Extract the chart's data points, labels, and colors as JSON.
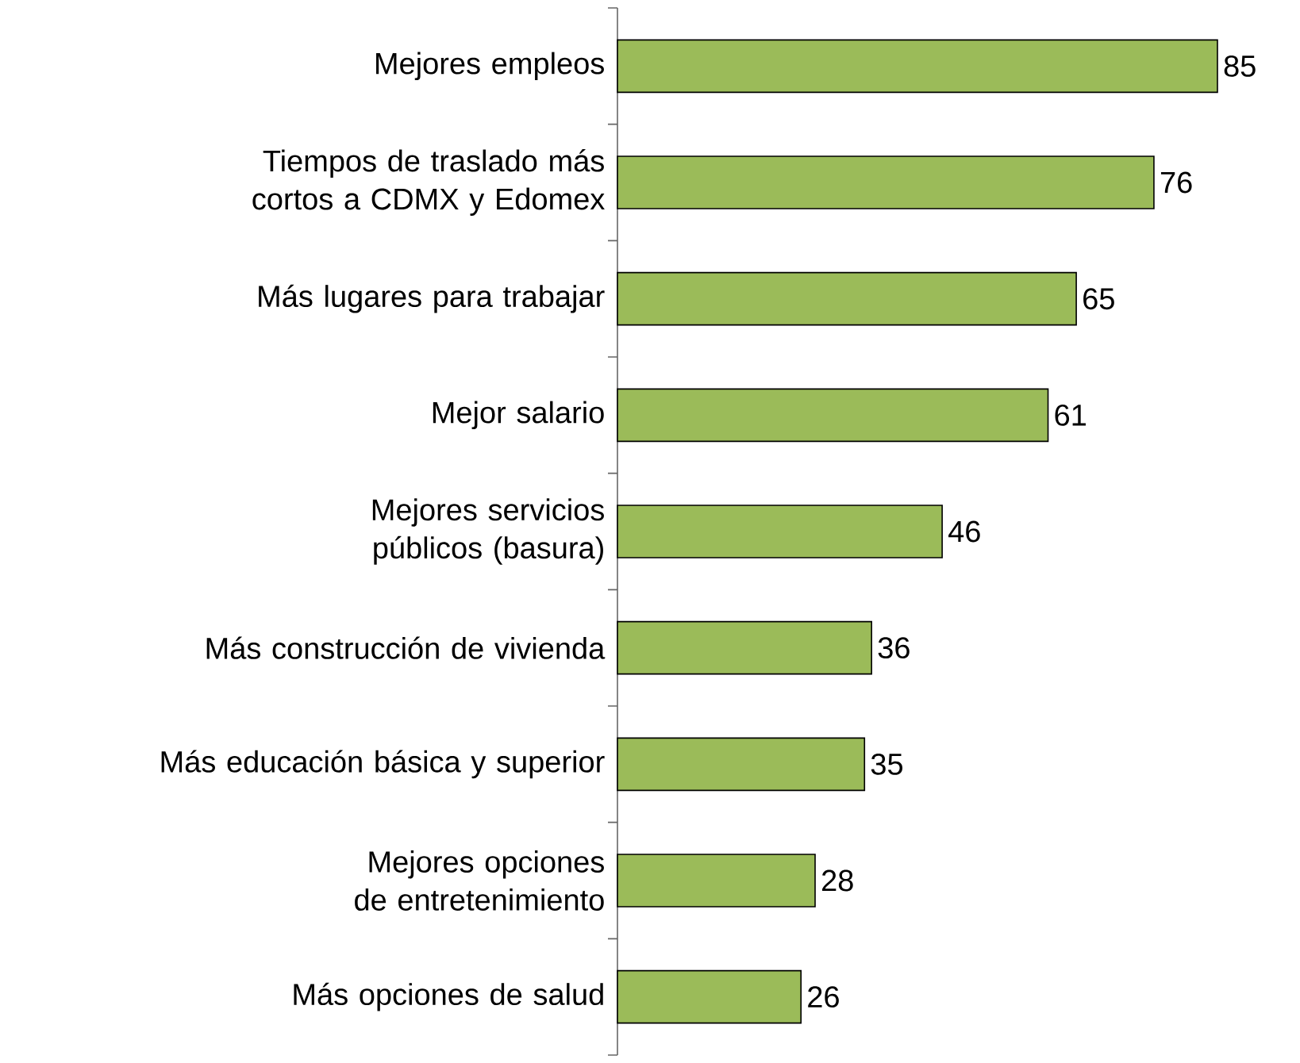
{
  "chart_data": {
    "type": "bar",
    "orientation": "horizontal",
    "categories": [
      "Mejores empleos",
      "Tiempos de traslado más cortos a CDMX y Edomex",
      "Más lugares para trabajar",
      "Mejor salario",
      "Mejores servicios públicos (basura)",
      "Más construcción de vivienda",
      "Más educación básica y superior",
      "Mejores opciones de entretenimiento",
      "Más opciones de salud"
    ],
    "values": [
      85,
      76,
      65,
      61,
      46,
      36,
      35,
      28,
      26
    ],
    "color": "#9bbb59",
    "data_labels": true,
    "tick_labels": "y"
  }
}
